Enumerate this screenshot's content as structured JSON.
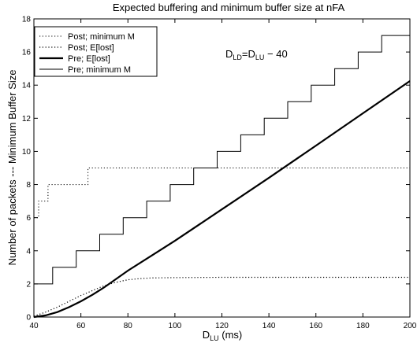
{
  "chart_data": {
    "type": "line",
    "title": "Expected buffering and minimum buffer size at nFA",
    "xlabel": {
      "main": "D",
      "sub": "LU",
      "suffix": " (ms)"
    },
    "ylabel": "Number of packets --- Minimum Buffer Size",
    "xlim": [
      40,
      200
    ],
    "ylim": [
      0,
      18
    ],
    "xticks": [
      40,
      60,
      80,
      100,
      120,
      140,
      160,
      180,
      200
    ],
    "yticks": [
      0,
      2,
      4,
      6,
      8,
      10,
      12,
      14,
      16,
      18
    ],
    "grid": false,
    "legend_position": "top-left",
    "annotation": {
      "parts": [
        {
          "t": "D",
          "sub": false
        },
        {
          "t": "LD",
          "sub": true
        },
        {
          "t": "=D",
          "sub": false
        },
        {
          "t": "LU",
          "sub": true
        },
        {
          "t": " − 40",
          "sub": false
        }
      ]
    },
    "series": [
      {
        "name": "Post; minimum M",
        "style": "dotted",
        "width": 1,
        "x": [
          40,
          42,
          42,
          46,
          46,
          52,
          52,
          63,
          63,
          200
        ],
        "y": [
          6,
          6,
          7,
          7,
          8,
          8,
          8,
          8,
          9,
          9
        ]
      },
      {
        "name": "Post; E[lost]",
        "style": "dotted",
        "width": 1.2,
        "x": [
          40,
          45,
          50,
          55,
          60,
          65,
          70,
          75,
          80,
          85,
          90,
          100,
          110,
          120,
          140,
          160,
          180,
          200
        ],
        "y": [
          0.05,
          0.3,
          0.6,
          0.95,
          1.3,
          1.6,
          1.9,
          2.1,
          2.25,
          2.32,
          2.36,
          2.38,
          2.39,
          2.4,
          2.4,
          2.4,
          2.4,
          2.4
        ]
      },
      {
        "name": "Pre; E[lost]",
        "style": "solid",
        "width": 2.2,
        "x": [
          40,
          45,
          50,
          55,
          60,
          65,
          70,
          75,
          80,
          90,
          100,
          120,
          140,
          160,
          180,
          200
        ],
        "y": [
          0,
          0.1,
          0.3,
          0.6,
          0.95,
          1.35,
          1.8,
          2.3,
          2.8,
          3.7,
          4.6,
          6.5,
          8.4,
          10.35,
          12.3,
          14.25
        ]
      },
      {
        "name": "Pre; minimum M",
        "style": "solid",
        "width": 1,
        "x": [
          40,
          48,
          48,
          52,
          52,
          58,
          58,
          63,
          63,
          68,
          68,
          72,
          72,
          78,
          78,
          83,
          83,
          88,
          88,
          92,
          92,
          98,
          98,
          103,
          103,
          108,
          108,
          112,
          112,
          118,
          118,
          123,
          123,
          128,
          128,
          132,
          132,
          138,
          138,
          143,
          143,
          148,
          148,
          152,
          152,
          158,
          158,
          163,
          163,
          168,
          168,
          172,
          172,
          178,
          178,
          183,
          183,
          188,
          188,
          192,
          192,
          200
        ],
        "y": [
          2,
          2,
          3,
          3,
          3,
          3,
          4,
          4,
          4,
          4,
          5,
          5,
          5,
          5,
          6,
          6,
          6,
          6,
          7,
          7,
          7,
          7,
          8,
          8,
          8,
          8,
          9,
          9,
          9,
          9,
          10,
          10,
          10,
          10,
          11,
          11,
          11,
          11,
          12,
          12,
          12,
          12,
          13,
          13,
          13,
          13,
          14,
          14,
          14,
          14,
          15,
          15,
          15,
          15,
          16,
          16,
          16,
          16,
          17,
          17,
          17,
          17
        ]
      }
    ]
  }
}
